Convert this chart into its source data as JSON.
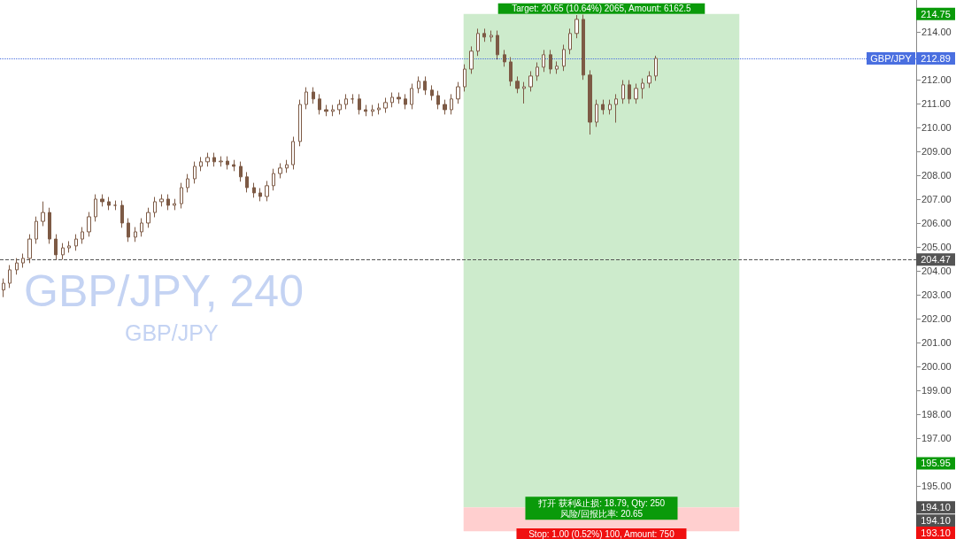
{
  "chart_data": {
    "type": "candlestick",
    "title": "GBP/JPY, 240",
    "subtitle": "GBP/JPY",
    "color": "#7d5a45",
    "tick_labels": "y",
    "grid": false,
    "categories": [
      null,
      null,
      null,
      null,
      null,
      null,
      null,
      null,
      null,
      null,
      null,
      null,
      null,
      null,
      null,
      null,
      null,
      null,
      null,
      null,
      null,
      null,
      null,
      null,
      null,
      null,
      null,
      null,
      null,
      null,
      null,
      null,
      null,
      null,
      null,
      null,
      null,
      null,
      null,
      null,
      null,
      null,
      null,
      null,
      null,
      null,
      null,
      null,
      null,
      null,
      null,
      null,
      null,
      null,
      null,
      null,
      null,
      null,
      null,
      null,
      null,
      null,
      null,
      null,
      null,
      null,
      null,
      null,
      null,
      null,
      null,
      null,
      null,
      null,
      null,
      null,
      null,
      null,
      null,
      null,
      null,
      null,
      null,
      null,
      null,
      null,
      null,
      null,
      null,
      null,
      null,
      null,
      null,
      null,
      null,
      null,
      null,
      null,
      null,
      null,
      null,
      null,
      null,
      null,
      null,
      null,
      null,
      null,
      null,
      null,
      null,
      null,
      null,
      null,
      null,
      null,
      null,
      null,
      null,
      null,
      null,
      null,
      null,
      null,
      null,
      null,
      null,
      null,
      null,
      null,
      null,
      null,
      null,
      null,
      null,
      null,
      null,
      null,
      null
    ],
    "ohlc": [
      [
        203.2,
        203.68,
        202.9,
        203.48
      ],
      [
        203.48,
        204.24,
        203.28,
        204.04
      ],
      [
        204.04,
        204.53,
        203.84,
        204.33
      ],
      [
        204.33,
        204.72,
        204.13,
        204.52
      ],
      [
        204.52,
        205.53,
        204.32,
        205.33
      ],
      [
        205.33,
        206.27,
        205.13,
        206.07
      ],
      [
        206.07,
        206.9,
        205.87,
        206.44
      ],
      [
        206.44,
        206.64,
        205.13,
        205.33
      ],
      [
        205.33,
        205.53,
        204.47,
        204.67
      ],
      [
        204.67,
        205.16,
        204.47,
        204.96
      ],
      [
        204.96,
        205.24,
        204.76,
        205.04
      ],
      [
        205.04,
        205.53,
        204.84,
        205.33
      ],
      [
        205.33,
        205.83,
        205.13,
        205.63
      ],
      [
        205.63,
        206.46,
        205.43,
        206.26
      ],
      [
        206.26,
        207.2,
        206.06,
        207.0
      ],
      [
        207.0,
        207.2,
        206.69,
        206.89
      ],
      [
        206.89,
        207.09,
        206.54,
        206.74
      ],
      [
        206.74,
        206.94,
        206.54,
        206.74
      ],
      [
        206.74,
        206.94,
        205.8,
        206.0
      ],
      [
        206.0,
        206.2,
        205.21,
        205.41
      ],
      [
        205.41,
        205.83,
        205.21,
        205.63
      ],
      [
        205.63,
        206.2,
        205.43,
        206.0
      ],
      [
        206.0,
        206.64,
        205.8,
        206.44
      ],
      [
        206.44,
        207.09,
        206.24,
        206.89
      ],
      [
        206.89,
        207.2,
        206.69,
        207.0
      ],
      [
        207.0,
        207.2,
        206.54,
        206.74
      ],
      [
        206.74,
        207.01,
        206.54,
        206.81
      ],
      [
        206.81,
        207.68,
        206.61,
        207.48
      ],
      [
        207.48,
        208.05,
        207.28,
        207.85
      ],
      [
        207.85,
        208.57,
        207.65,
        208.37
      ],
      [
        208.37,
        208.76,
        208.17,
        208.56
      ],
      [
        208.56,
        208.94,
        208.36,
        208.74
      ],
      [
        208.74,
        208.94,
        208.36,
        208.56
      ],
      [
        208.56,
        208.79,
        208.36,
        208.59
      ],
      [
        208.59,
        208.79,
        208.24,
        208.44
      ],
      [
        208.44,
        208.64,
        208.17,
        208.37
      ],
      [
        208.37,
        208.57,
        207.73,
        207.93
      ],
      [
        207.93,
        208.13,
        207.28,
        207.48
      ],
      [
        207.48,
        207.68,
        207.06,
        207.26
      ],
      [
        207.26,
        207.46,
        206.91,
        207.11
      ],
      [
        207.11,
        207.76,
        206.91,
        207.56
      ],
      [
        207.56,
        208.27,
        207.36,
        208.07
      ],
      [
        208.07,
        208.5,
        207.87,
        208.3
      ],
      [
        208.3,
        208.64,
        208.1,
        208.44
      ],
      [
        208.44,
        209.61,
        208.24,
        209.41
      ],
      [
        209.41,
        211.16,
        209.21,
        210.96
      ],
      [
        210.96,
        211.68,
        210.76,
        211.48
      ],
      [
        211.48,
        211.68,
        210.99,
        211.19
      ],
      [
        211.19,
        211.39,
        210.54,
        210.74
      ],
      [
        210.74,
        210.94,
        210.47,
        210.67
      ],
      [
        210.67,
        210.94,
        210.47,
        210.74
      ],
      [
        210.74,
        211.16,
        210.54,
        210.96
      ],
      [
        210.96,
        211.39,
        210.76,
        211.19
      ],
      [
        211.19,
        211.39,
        210.99,
        211.19
      ],
      [
        211.19,
        211.39,
        210.54,
        210.74
      ],
      [
        210.74,
        210.94,
        210.47,
        210.67
      ],
      [
        210.67,
        210.94,
        210.47,
        210.74
      ],
      [
        210.74,
        211.01,
        210.54,
        210.81
      ],
      [
        210.81,
        211.24,
        210.61,
        211.04
      ],
      [
        211.04,
        211.46,
        210.84,
        211.26
      ],
      [
        211.26,
        211.46,
        210.99,
        211.19
      ],
      [
        211.19,
        211.39,
        210.76,
        210.96
      ],
      [
        210.96,
        211.83,
        210.76,
        211.63
      ],
      [
        211.63,
        212.13,
        211.43,
        211.93
      ],
      [
        211.93,
        212.13,
        211.36,
        211.56
      ],
      [
        211.56,
        211.76,
        211.13,
        211.33
      ],
      [
        211.33,
        211.53,
        210.76,
        210.96
      ],
      [
        210.96,
        211.16,
        210.54,
        210.74
      ],
      [
        210.74,
        211.39,
        210.54,
        211.19
      ],
      [
        211.19,
        211.9,
        210.99,
        211.7
      ],
      [
        211.7,
        212.64,
        211.5,
        212.44
      ],
      [
        212.44,
        213.39,
        212.24,
        213.19
      ],
      [
        213.19,
        214.13,
        212.99,
        213.93
      ],
      [
        213.93,
        214.13,
        213.58,
        213.78
      ],
      [
        213.78,
        214.05,
        213.58,
        213.85
      ],
      [
        213.85,
        214.05,
        212.84,
        213.04
      ],
      [
        213.04,
        213.24,
        212.54,
        212.74
      ],
      [
        212.74,
        212.94,
        211.73,
        211.93
      ],
      [
        211.93,
        212.13,
        211.43,
        211.63
      ],
      [
        211.63,
        211.9,
        211.0,
        211.7
      ],
      [
        211.7,
        212.35,
        211.5,
        212.15
      ],
      [
        212.15,
        212.72,
        211.95,
        212.52
      ],
      [
        212.52,
        213.24,
        212.32,
        213.04
      ],
      [
        213.04,
        213.24,
        212.24,
        212.44
      ],
      [
        212.44,
        212.76,
        212.24,
        212.56
      ],
      [
        212.56,
        213.46,
        212.36,
        213.26
      ],
      [
        213.26,
        214.13,
        213.06,
        213.93
      ],
      [
        213.93,
        214.7,
        213.73,
        214.52
      ],
      [
        214.52,
        214.72,
        211.99,
        212.19
      ],
      [
        212.19,
        212.39,
        209.7,
        210.22
      ],
      [
        210.22,
        211.16,
        210.02,
        210.96
      ],
      [
        210.96,
        211.16,
        210.54,
        210.74
      ],
      [
        210.74,
        211.16,
        210.54,
        210.96
      ],
      [
        210.96,
        211.39,
        210.2,
        211.19
      ],
      [
        211.19,
        211.98,
        210.99,
        211.78
      ],
      [
        211.78,
        211.98,
        210.99,
        211.19
      ],
      [
        211.19,
        211.83,
        210.99,
        211.63
      ],
      [
        211.63,
        212.05,
        211.2,
        211.85
      ],
      [
        211.85,
        212.35,
        211.65,
        212.15
      ],
      [
        212.15,
        213.0,
        211.95,
        212.89
      ],
      null,
      null,
      null,
      null,
      null,
      null,
      null,
      null,
      null,
      null,
      null,
      null,
      null,
      null,
      null,
      null,
      null,
      null,
      null,
      null,
      null,
      null,
      null,
      null,
      null,
      null,
      null,
      null,
      null,
      null,
      null,
      null,
      null,
      null,
      null,
      null,
      null,
      null,
      null
    ],
    "ylim": [
      192.78,
      215.33
    ],
    "yticks": [
      {
        "value": 195,
        "label": "195.00"
      },
      {
        "value": 197,
        "label": "197.00"
      },
      {
        "value": 198,
        "label": "198.00"
      },
      {
        "value": 199,
        "label": "199.00"
      },
      {
        "value": 200,
        "label": "200.00"
      },
      {
        "value": 201,
        "label": "201.00"
      },
      {
        "value": 202,
        "label": "202.00"
      },
      {
        "value": 203,
        "label": "203.00"
      },
      {
        "value": 204,
        "label": "204.00"
      },
      {
        "value": 205,
        "label": "205.00"
      },
      {
        "value": 206,
        "label": "206.00"
      },
      {
        "value": 207,
        "label": "207.00"
      },
      {
        "value": 208,
        "label": "208.00"
      },
      {
        "value": 209,
        "label": "209.00"
      },
      {
        "value": 210,
        "label": "210.00"
      },
      {
        "value": 211,
        "label": "211.00"
      },
      {
        "value": 212,
        "label": "212.00"
      },
      {
        "value": 214,
        "label": "214.00"
      }
    ],
    "bands": [
      {
        "axis": "y",
        "from": 194.1,
        "to": 214.75,
        "label": "Target: 20.65 (10.64%) 2065, Amount: 6162.5",
        "color": "#cdebcc"
      },
      {
        "axis": "y",
        "from": 193.1,
        "to": 194.1,
        "label": "Stop: 1.00 (0.52%) 100, Amount: 750",
        "color": "#ffcfcf"
      }
    ],
    "ref_lines": [
      {
        "axis": "y",
        "value": 212.89,
        "label": "GBP/JPY",
        "color": "#4a6fe0",
        "line_style": "dotted"
      },
      {
        "axis": "y",
        "value": 204.47,
        "label": null,
        "color": "#555555",
        "line_style": "dashed"
      }
    ],
    "annotations": [
      {
        "text": "打开 获利&止损: 18.79, Qty: 250\n风险/回报比率: 20.65",
        "y": 194.1
      },
      {
        "text": "212.89",
        "y": 212.89
      },
      {
        "text": "204.47",
        "y": 204.47
      },
      {
        "text": "214.75",
        "y": 214.75
      },
      {
        "text": "195.95",
        "y": 195.95
      },
      {
        "text": "194.10",
        "y": 194.1
      },
      "194.10",
      {
        "text": "193.10",
        "y": 193.1
      }
    ]
  }
}
